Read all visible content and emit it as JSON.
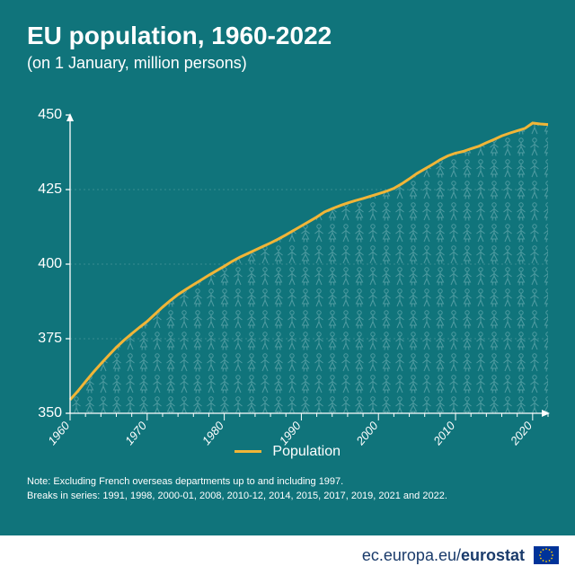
{
  "colors": {
    "background": "#10747b",
    "text": "#ffffff",
    "axis": "#ffffff",
    "grid": "#5fa3a9",
    "line": "#f1b537",
    "footer_bg": "#ffffff",
    "footer_text": "#1a3b6b",
    "eu_flag_bg": "#003399",
    "eu_flag_star": "#ffcc00",
    "people_fill": "#4f9ba1"
  },
  "header": {
    "title": "EU population, 1960-2022",
    "subtitle": "(on 1 January, million persons)"
  },
  "chart": {
    "type": "line-area",
    "ylim": [
      350,
      450
    ],
    "ytick_step": 25,
    "xlim": [
      1960,
      2022
    ],
    "xtick_step": 10,
    "xtick_minor_step": 2,
    "line_width": 3,
    "series_label": "Population",
    "data": [
      [
        1960,
        354.5
      ],
      [
        1961,
        357.4
      ],
      [
        1962,
        360.6
      ],
      [
        1963,
        363.7
      ],
      [
        1964,
        366.6
      ],
      [
        1965,
        369.4
      ],
      [
        1966,
        372.1
      ],
      [
        1967,
        374.5
      ],
      [
        1968,
        376.7
      ],
      [
        1969,
        378.8
      ],
      [
        1970,
        380.8
      ],
      [
        1971,
        383.2
      ],
      [
        1972,
        385.6
      ],
      [
        1973,
        387.8
      ],
      [
        1974,
        389.8
      ],
      [
        1975,
        391.5
      ],
      [
        1976,
        393.1
      ],
      [
        1977,
        394.7
      ],
      [
        1978,
        396.3
      ],
      [
        1979,
        397.8
      ],
      [
        1980,
        399.3
      ],
      [
        1981,
        400.9
      ],
      [
        1982,
        402.3
      ],
      [
        1983,
        403.5
      ],
      [
        1984,
        404.7
      ],
      [
        1985,
        405.9
      ],
      [
        1986,
        407.1
      ],
      [
        1987,
        408.4
      ],
      [
        1988,
        409.8
      ],
      [
        1989,
        411.3
      ],
      [
        1990,
        412.8
      ],
      [
        1991,
        414.3
      ],
      [
        1992,
        415.8
      ],
      [
        1993,
        417.5
      ],
      [
        1994,
        418.6
      ],
      [
        1995,
        419.6
      ],
      [
        1996,
        420.5
      ],
      [
        1997,
        421.3
      ],
      [
        1998,
        422.0
      ],
      [
        1999,
        422.8
      ],
      [
        2000,
        423.6
      ],
      [
        2001,
        424.4
      ],
      [
        2002,
        425.4
      ],
      [
        2003,
        426.9
      ],
      [
        2004,
        428.6
      ],
      [
        2005,
        430.4
      ],
      [
        2006,
        431.9
      ],
      [
        2007,
        433.4
      ],
      [
        2008,
        435.0
      ],
      [
        2009,
        436.3
      ],
      [
        2010,
        437.2
      ],
      [
        2011,
        437.8
      ],
      [
        2012,
        438.7
      ],
      [
        2013,
        439.5
      ],
      [
        2014,
        440.7
      ],
      [
        2015,
        441.8
      ],
      [
        2016,
        443.0
      ],
      [
        2017,
        443.9
      ],
      [
        2018,
        444.7
      ],
      [
        2019,
        445.5
      ],
      [
        2020,
        447.3
      ],
      [
        2021,
        447.0
      ],
      [
        2022,
        446.8
      ]
    ]
  },
  "notes": {
    "line1": "Note: Excluding French overseas departments up to and including 1997.",
    "line2": "Breaks in series: 1991, 1998, 2000-01, 2008, 2010-12, 2014, 2015, 2017, 2019, 2021 and 2022."
  },
  "footer": {
    "prefix": "ec.europa.eu/",
    "brand": "eurostat"
  }
}
